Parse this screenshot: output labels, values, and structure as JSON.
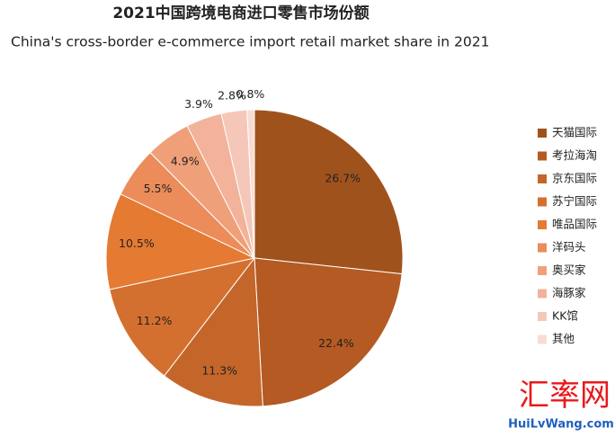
{
  "chart_data": {
    "type": "pie",
    "title": "2021中国跨境电商进口零售市场份额",
    "subtitle": "China's cross-border e-commerce import retail market share in 2021",
    "categories": [
      "天猫国际",
      "考拉海淘",
      "京东国际",
      "苏宁国际",
      "唯品国际",
      "洋码头",
      "奥买家",
      "海豚家",
      "KK馆",
      "其他"
    ],
    "values": [
      26.7,
      22.4,
      11.3,
      11.2,
      10.5,
      5.5,
      4.9,
      3.9,
      2.8,
      0.8
    ],
    "value_labels": [
      "26.7%",
      "22.4%",
      "11.3%",
      "11.2%",
      "10.5%",
      "5.5%",
      "4.9%",
      "3.9%",
      "2.8%",
      "0.8%"
    ],
    "colors": [
      "#a0521d",
      "#b45a22",
      "#c4662a",
      "#d4702f",
      "#e57a33",
      "#ec8c5a",
      "#f0a079",
      "#f2b39a",
      "#f5c7b8",
      "#f8dcd3"
    ],
    "legend": "right"
  },
  "watermark": {
    "name": "汇率网",
    "site": "HuiLvWang.com"
  }
}
